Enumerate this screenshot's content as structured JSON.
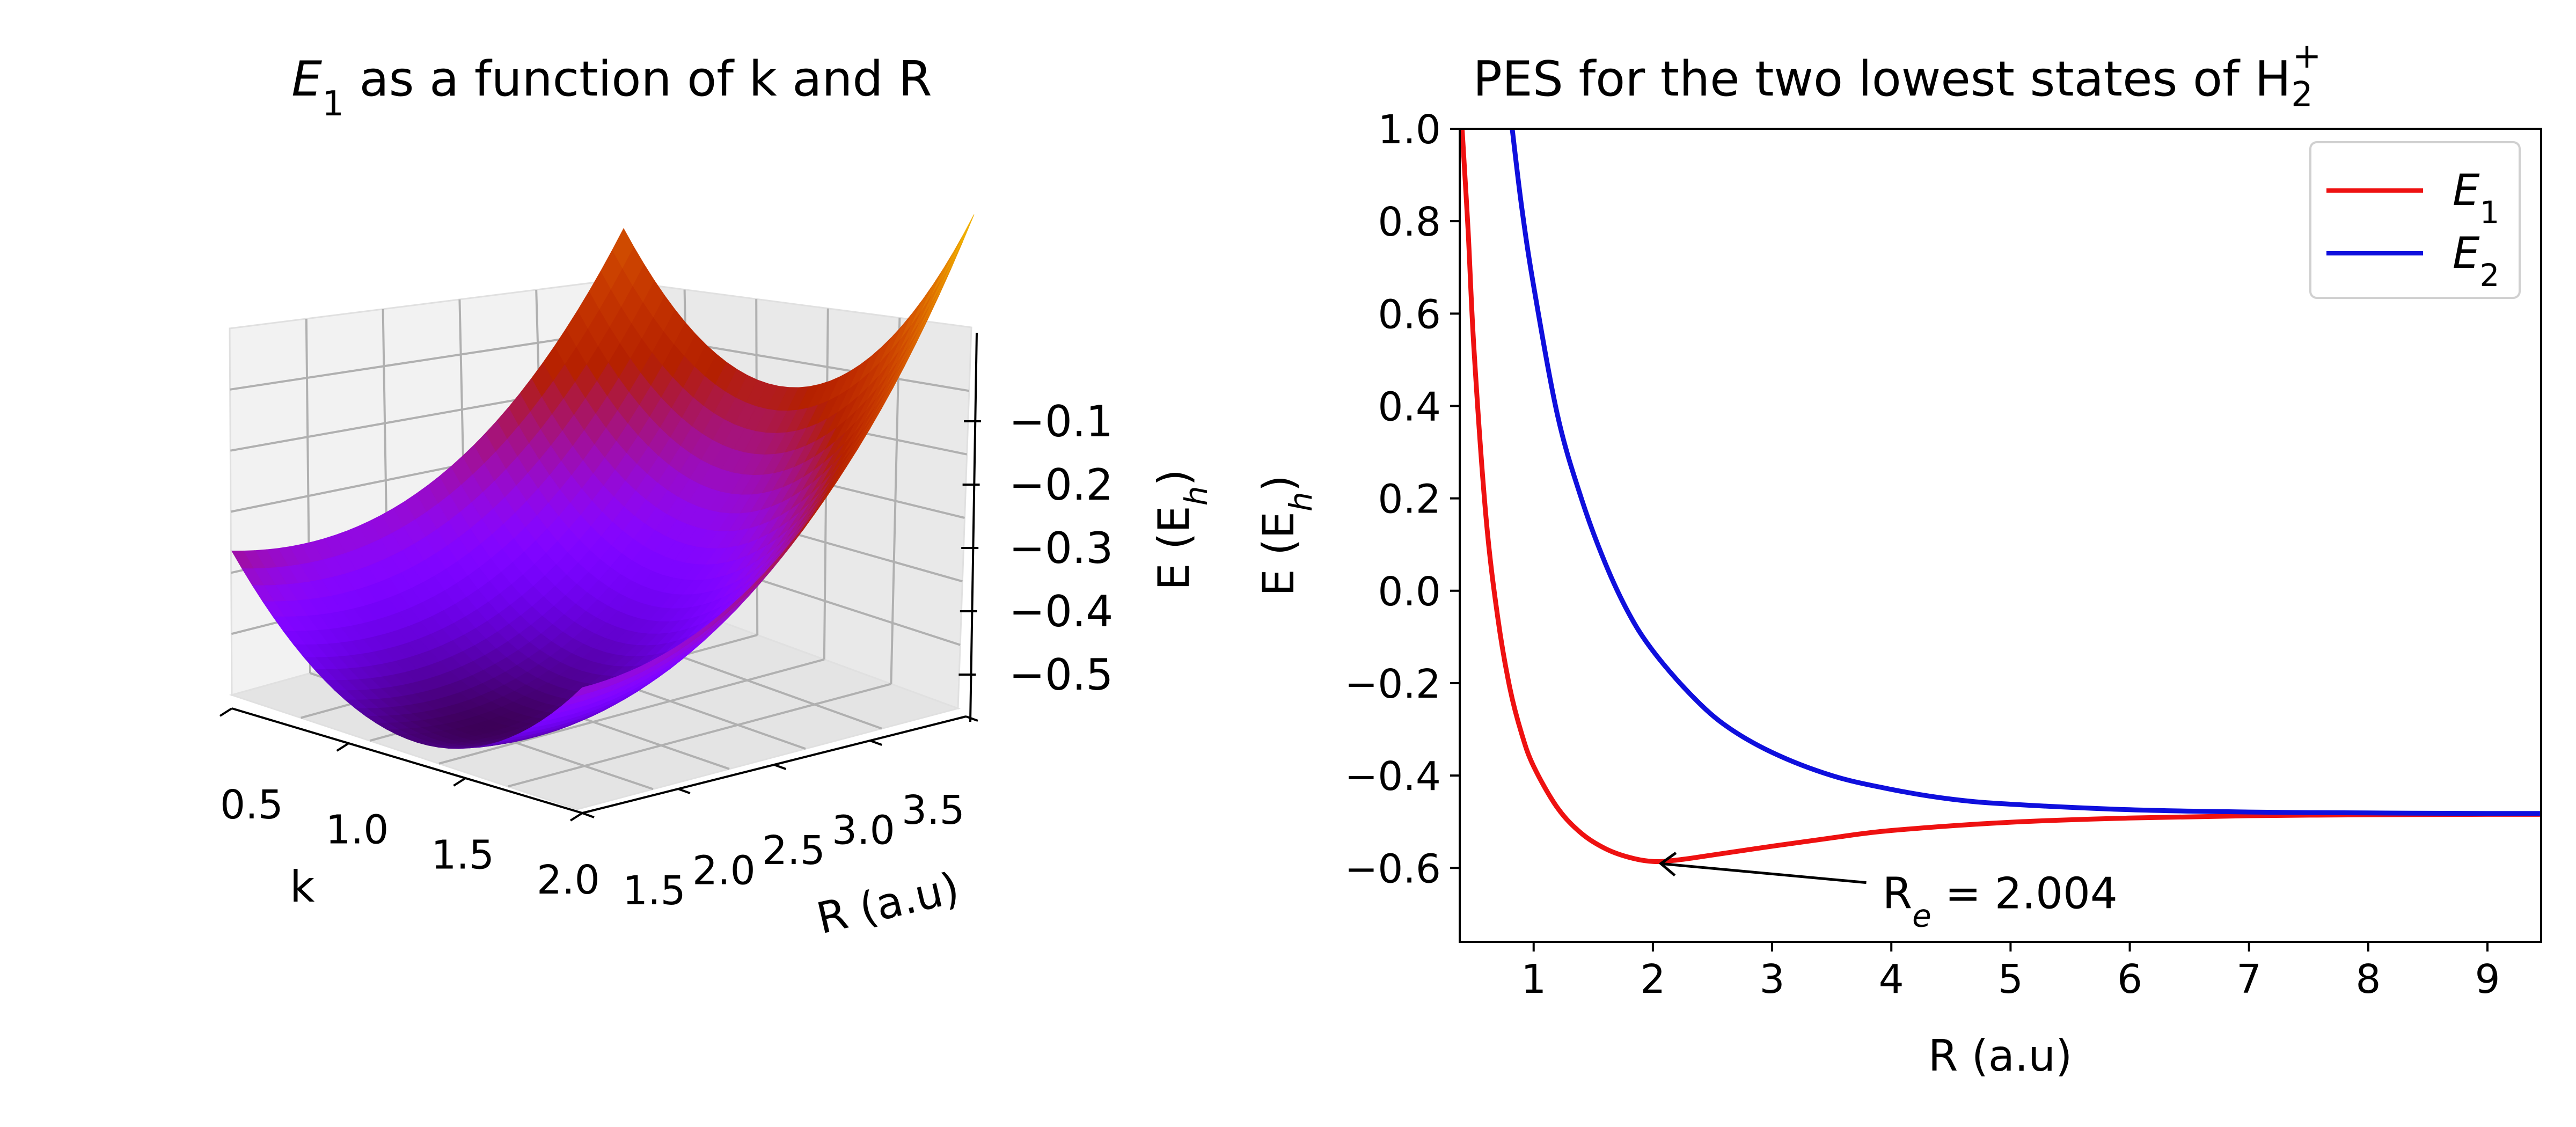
{
  "chart_data": [
    {
      "type": "surface",
      "title_main": "E",
      "title_sub": "1",
      "title_rest": " as a function of k and R",
      "xlabel": "k",
      "ylabel": "R (a.u)",
      "zlabel_main": "E (E",
      "zlabel_sub": "h",
      "zlabel_end": ")",
      "colormap": "gnuplot",
      "k_ticks": [
        "0.5",
        "1.0",
        "1.5",
        "2.0"
      ],
      "R_ticks": [
        "1.5",
        "2.0",
        "2.5",
        "3.0",
        "3.5"
      ],
      "z_ticks": [
        "−0.1",
        "−0.2",
        "−0.3",
        "−0.4",
        "−0.5"
      ],
      "k_range": [
        0.5,
        2.0
      ],
      "R_range": [
        1.5,
        3.5
      ],
      "z_range": [
        -0.59,
        -0.05
      ],
      "minimum": {
        "k": 1.24,
        "R": 2.0,
        "E": -0.586
      }
    },
    {
      "type": "line",
      "title_main": "PES for the two lowest states of H",
      "title_sub": "2",
      "title_sup": "+",
      "xlabel": "R (a.u)",
      "ylabel_main": "E (E",
      "ylabel_sub": "h",
      "ylabel_end": ")",
      "xlim": [
        0.38,
        9.45
      ],
      "ylim": [
        -0.76,
        1.0
      ],
      "x_ticks": [
        "1",
        "2",
        "3",
        "4",
        "5",
        "6",
        "7",
        "8",
        "9"
      ],
      "y_ticks": [
        "1.0",
        "0.8",
        "0.6",
        "0.4",
        "0.2",
        "0.0",
        "−0.2",
        "−0.4",
        "−0.6"
      ],
      "grid": false,
      "legend_position": "top-right",
      "series": [
        {
          "name_main": "E",
          "name_sub": "1",
          "color": "#ee1111",
          "x": [
            0.4,
            0.45,
            0.5,
            0.6,
            0.7,
            0.8,
            0.9,
            1.0,
            1.2,
            1.4,
            1.6,
            1.8,
            2.0,
            2.2,
            2.5,
            3.0,
            3.5,
            4.0,
            5.0,
            6.0,
            7.0,
            8.0,
            9.0,
            9.45
          ],
          "y": [
            1.0,
            0.78,
            0.52,
            0.16,
            -0.06,
            -0.21,
            -0.31,
            -0.38,
            -0.47,
            -0.525,
            -0.558,
            -0.577,
            -0.586,
            -0.583,
            -0.572,
            -0.553,
            -0.535,
            -0.519,
            -0.501,
            -0.492,
            -0.487,
            -0.485,
            -0.484,
            -0.484
          ]
        },
        {
          "name_main": "E",
          "name_sub": "2",
          "color": "#0f0fdd",
          "x": [
            0.82,
            0.9,
            1.0,
            1.2,
            1.4,
            1.6,
            1.8,
            2.0,
            2.3,
            2.6,
            3.0,
            3.5,
            4.0,
            4.5,
            5.0,
            6.0,
            7.0,
            8.0,
            9.0,
            9.45
          ],
          "y": [
            1.0,
            0.83,
            0.66,
            0.38,
            0.2,
            0.06,
            -0.05,
            -0.13,
            -0.22,
            -0.29,
            -0.35,
            -0.4,
            -0.43,
            -0.451,
            -0.462,
            -0.474,
            -0.479,
            -0.481,
            -0.482,
            -0.482
          ]
        }
      ],
      "annotation": {
        "label_main": "R",
        "label_sub": "e",
        "label_rest": " = 2.004",
        "point_x": 2.004,
        "point_y": -0.586,
        "text_x": 3.88,
        "text_y": -0.655
      }
    }
  ]
}
